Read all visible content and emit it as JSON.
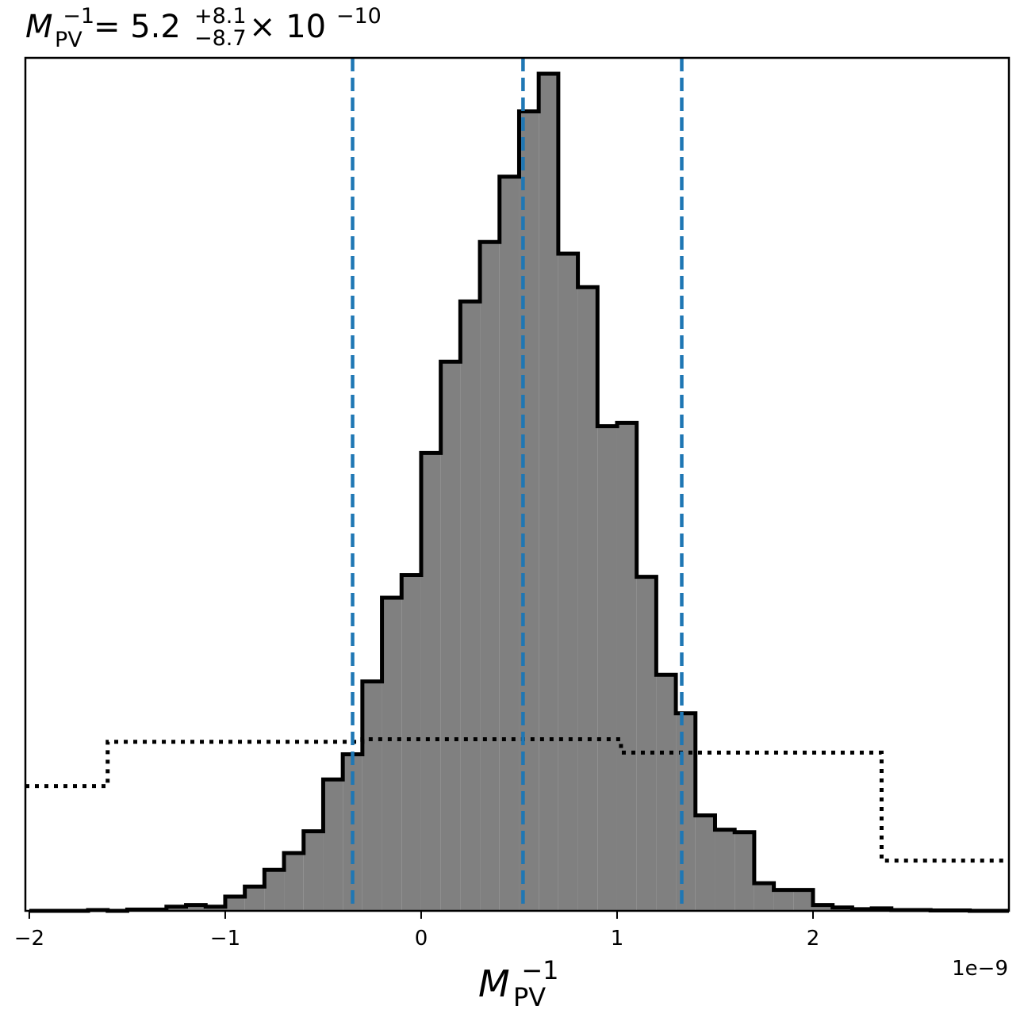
{
  "chart_data": {
    "type": "histogram",
    "title": {
      "base": "M",
      "base_sup": "−1",
      "base_sub": "PV",
      "eq": " = 5.2",
      "upper": "+8.1",
      "lower": "−8.7",
      "times": " × 10",
      "exp": "−10"
    },
    "xlabel": {
      "base": "M",
      "sup": "−1",
      "sub": "PV"
    },
    "x_offset_text": "1e−9",
    "xlim": [
      -2.02,
      3.0
    ],
    "ylim": [
      0,
      1.0
    ],
    "yaxis_visible": false,
    "grid": false,
    "xticks": [
      {
        "value": -2,
        "label": "−2"
      },
      {
        "value": -1,
        "label": "−1"
      },
      {
        "value": 0,
        "label": "0"
      },
      {
        "value": 1,
        "label": "1"
      },
      {
        "value": 2,
        "label": "2"
      }
    ],
    "posterior": {
      "name": "posterior",
      "fill": "#808080",
      "edge": "#000000",
      "bin_start": -2.0,
      "bin_width": 0.1,
      "values": [
        0.0,
        0.0,
        0.0,
        0.001,
        0.0,
        0.0015,
        0.0015,
        0.005,
        0.007,
        0.005,
        0.017,
        0.029,
        0.049,
        0.069,
        0.095,
        0.157,
        0.187,
        0.274,
        0.374,
        0.401,
        0.547,
        0.656,
        0.728,
        0.799,
        0.877,
        0.955,
        1.0,
        0.785,
        0.745,
        0.579,
        0.583,
        0.399,
        0.282,
        0.236,
        0.114,
        0.097,
        0.094,
        0.033,
        0.025,
        0.025,
        0.007,
        0.004,
        0.002,
        0.003,
        0.001,
        0.001,
        0.0005,
        0.0005,
        0.0,
        0.0
      ]
    },
    "prior": {
      "name": "prior",
      "style": "dotted",
      "color": "#000000",
      "edges": [
        -2.02,
        -1.6,
        -0.3,
        1.02,
        2.35,
        3.0
      ],
      "values": [
        0.149,
        0.202,
        0.205,
        0.189,
        0.06
      ]
    },
    "quantiles": {
      "color": "#1f77b4",
      "style": "dashed",
      "values": [
        -0.35,
        0.52,
        1.33
      ]
    }
  }
}
